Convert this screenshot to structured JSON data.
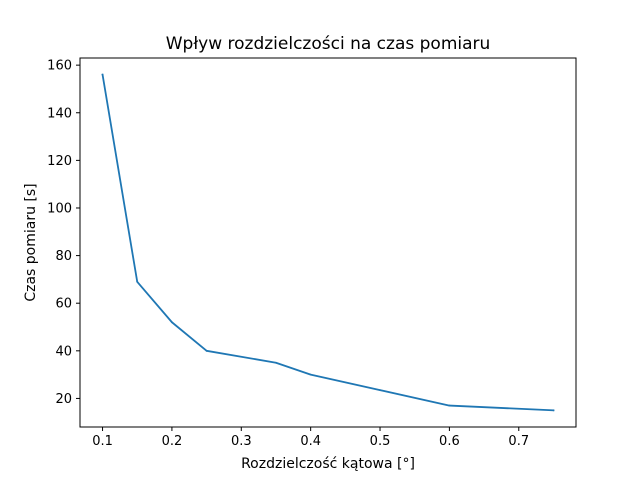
{
  "chart_data": {
    "type": "line",
    "title": "Wpływ rozdzielczości na czas pomiaru",
    "xlabel": "Rozdzielczość kątowa [°]",
    "ylabel": "Czas pomiaru [s]",
    "xlim": [
      0.0675,
      0.7825
    ],
    "ylim": [
      8,
      163
    ],
    "xticks": [
      0.1,
      0.2,
      0.3,
      0.4,
      0.5,
      0.6,
      0.7
    ],
    "xtick_labels": [
      "0.1",
      "0.2",
      "0.3",
      "0.4",
      "0.5",
      "0.6",
      "0.7"
    ],
    "yticks": [
      20,
      40,
      60,
      80,
      100,
      120,
      140,
      160
    ],
    "ytick_labels": [
      "20",
      "40",
      "60",
      "80",
      "100",
      "120",
      "140",
      "160"
    ],
    "grid": false,
    "legend": "none",
    "series": [
      {
        "color": "#1f77b4",
        "x": [
          0.1,
          0.15,
          0.2,
          0.25,
          0.35,
          0.4,
          0.5,
          0.6,
          0.75
        ],
        "y": [
          156,
          69,
          52,
          40,
          35,
          30,
          23.5,
          17,
          15
        ]
      }
    ]
  }
}
